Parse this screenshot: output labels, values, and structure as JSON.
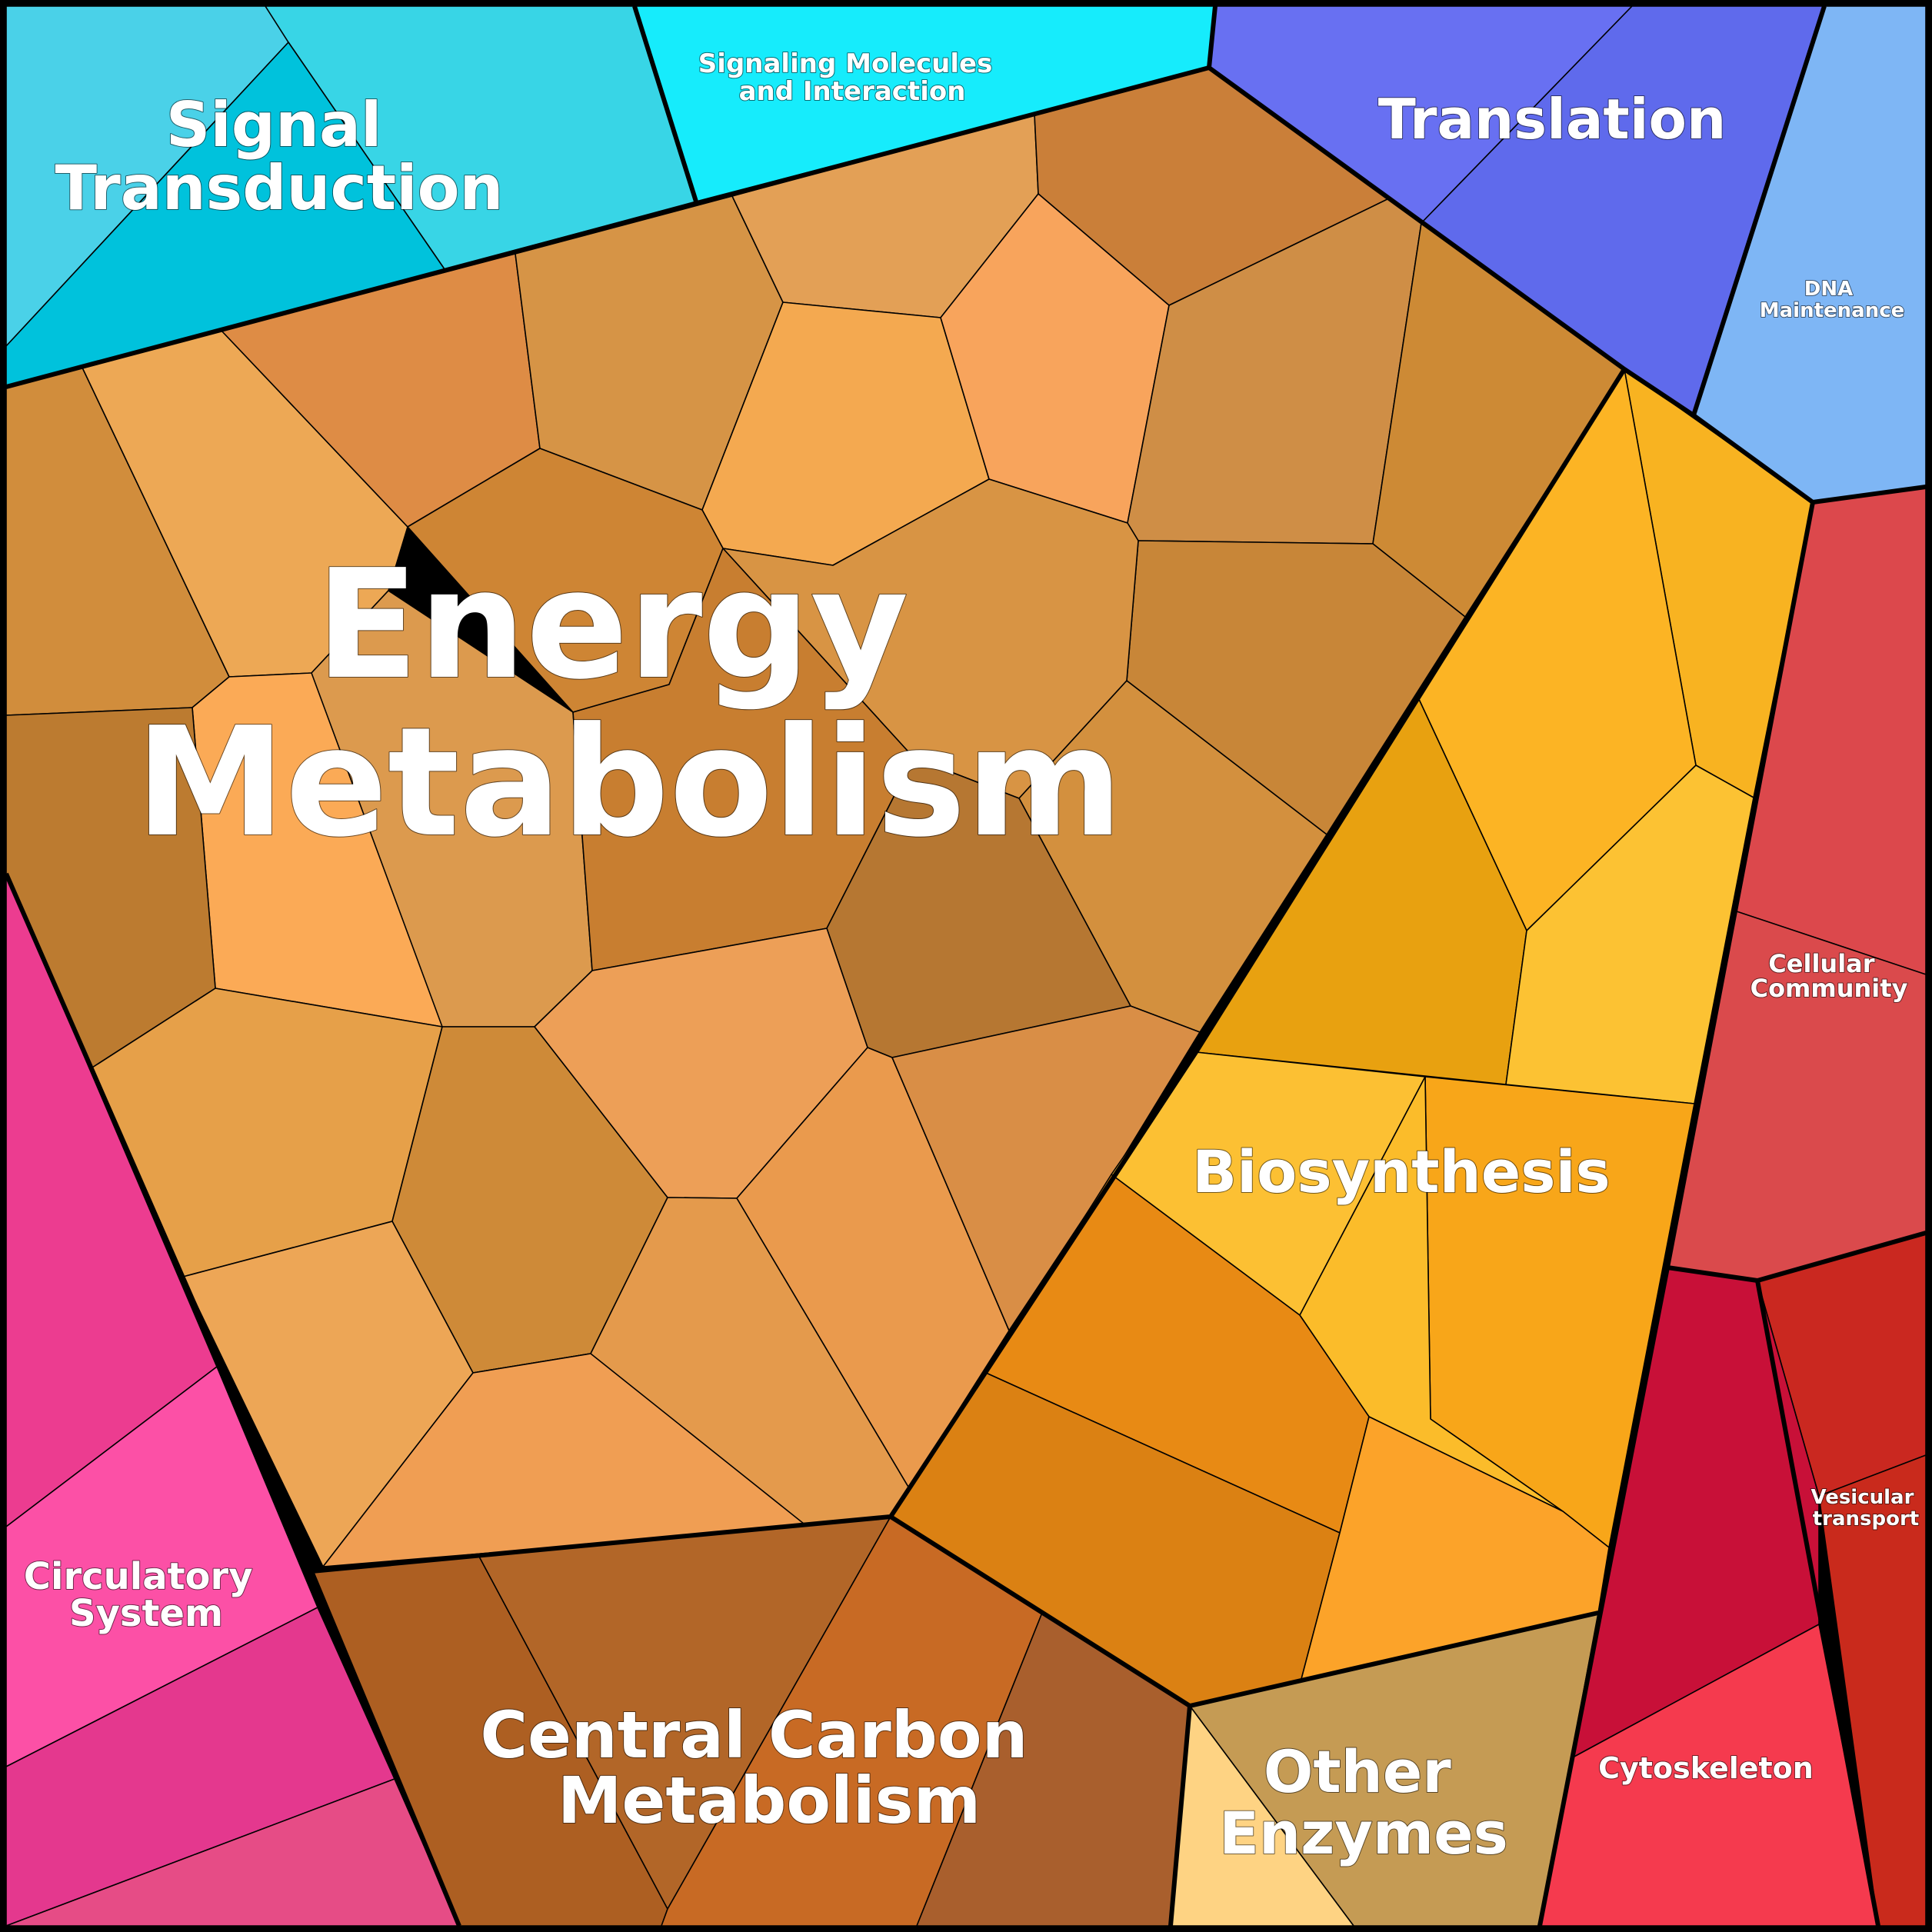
{
  "colors": {
    "energy": [
      "#d18d3c",
      "#eda855",
      "#de8c45",
      "#d69446",
      "#e3a056",
      "#ca7f39",
      "#f4a950",
      "#f8a45c",
      "#cf8e46",
      "#cd8a35",
      "#c88638",
      "#ce8534",
      "#d89444",
      "#d3903e",
      "#fbaa56",
      "#dc9a4e",
      "#c87e30",
      "#b67732",
      "#bc7b30",
      "#e6a049",
      "#ce8a38",
      "#ed9f57",
      "#ea9a4d",
      "#d98e46",
      "#eda656",
      "#e49a4c",
      "#f09e53",
      "#b37433",
      "#e89a4a",
      "#c9863c",
      "#b07530",
      "#d8913e",
      "#ea9e4f",
      "#d9903f",
      "#f29f56"
    ],
    "signal_transduction": [
      "#4ad1e8",
      "#38d5e6",
      "#00c2dc"
    ],
    "signaling_molecules": "#16ecfc",
    "translation": [
      "#6870f2",
      "#5f6aec"
    ],
    "dna_maintenance": "#7eb6f5",
    "biosynthesis": [
      "#f8b321",
      "#fcb424",
      "#e8a110",
      "#fcc233",
      "#fcc033",
      "#f8a619",
      "#fbbc2a",
      "#e88a14",
      "#db8113",
      "#fca329"
    ],
    "cellular_community": [
      "#dc484c",
      "#da4a4c"
    ],
    "vesicular_transport": [
      "#ca2820",
      "#c92a1c"
    ],
    "cytoskeleton": [
      "#c81038",
      "#f53a4e"
    ],
    "circulatory_system": [
      "#ec3c90",
      "#fc50a6",
      "#e4388e",
      "#e64c86"
    ],
    "central_carbon_metabolism": [
      "#ad5f22",
      "#b26628",
      "#c86a24",
      "#a95f2d"
    ],
    "other_enzymes": [
      "#c59b54",
      "#fed383"
    ]
  },
  "labels": {
    "energy_metabolism": [
      "Energy",
      "Metabolism"
    ],
    "signal_transduction": [
      "Signal",
      "Transduction"
    ],
    "signaling_molecules": [
      "Signaling Molecules",
      "and Interaction"
    ],
    "translation": [
      "Translation"
    ],
    "dna_maintenance": [
      "DNA",
      "Maintenance"
    ],
    "biosynthesis": [
      "Biosynthesis"
    ],
    "cellular_community": [
      "Cellular",
      "Community"
    ],
    "vesicular_transport": [
      "Vesicular",
      "transport"
    ],
    "cytoskeleton": [
      "Cytoskeleton"
    ],
    "circulatory_system": [
      "Circulatory",
      "System"
    ],
    "central_carbon_metabolism": [
      "Central Carbon",
      "Metabolism"
    ],
    "other_enzymes": [
      "Other",
      "Enzymes"
    ]
  }
}
